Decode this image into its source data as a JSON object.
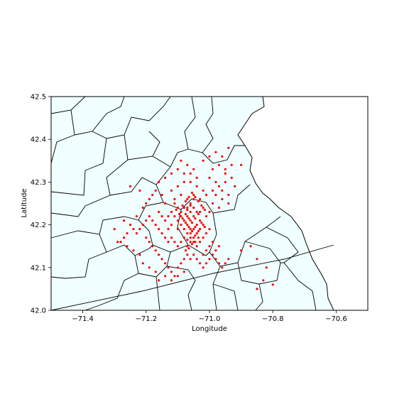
{
  "chart_data": {
    "type": "scatter",
    "title": "",
    "xlabel": "Longitude",
    "ylabel": "Latitude",
    "xlim": [
      -71.5,
      -70.5
    ],
    "ylim": [
      42.0,
      42.5
    ],
    "xticks": [
      -71.4,
      -71.2,
      -71.0,
      -70.8,
      -70.6
    ],
    "xtick_labels": [
      "−71.4",
      "−71.2",
      "−71.0",
      "−70.8",
      "−70.6"
    ],
    "yticks": [
      42.0,
      42.1,
      42.2,
      42.3,
      42.4,
      42.5
    ],
    "ytick_labels": [
      "42.0",
      "42.1",
      "42.2",
      "42.3",
      "42.4",
      "42.5"
    ],
    "grid": false,
    "colors": {
      "points": "#ff0000",
      "map_fill": "#f0ffff",
      "map_edge": "#000000",
      "axes": "#000000"
    },
    "series": [
      {
        "values_note": "",
        "points": [
          [
            -71.05,
            42.33
          ],
          [
            -71.07,
            42.34
          ],
          [
            -71.09,
            42.35
          ],
          [
            -71.06,
            42.32
          ],
          [
            -71.04,
            42.31
          ],
          [
            -71.08,
            42.3
          ],
          [
            -71.1,
            42.29
          ],
          [
            -71.12,
            42.28
          ],
          [
            -71.15,
            42.27
          ],
          [
            -71.18,
            42.27
          ],
          [
            -71.22,
            42.28
          ],
          [
            -71.25,
            42.29
          ],
          [
            -71.2,
            42.25
          ],
          [
            -71.14,
            42.25
          ],
          [
            -71.11,
            42.26
          ],
          [
            -71.09,
            42.27
          ],
          [
            -71.07,
            42.26
          ],
          [
            -71.05,
            42.27
          ],
          [
            -71.03,
            42.26
          ],
          [
            -71.01,
            42.27
          ],
          [
            -70.99,
            42.28
          ],
          [
            -70.97,
            42.29
          ],
          [
            -70.95,
            42.3
          ],
          [
            -70.93,
            42.31
          ],
          [
            -70.95,
            42.33
          ],
          [
            -70.97,
            42.34
          ],
          [
            -70.99,
            42.33
          ],
          [
            -71.0,
            42.31
          ],
          [
            -70.98,
            42.3
          ],
          [
            -70.96,
            42.28
          ],
          [
            -70.94,
            42.27
          ],
          [
            -70.96,
            42.26
          ],
          [
            -70.98,
            42.27
          ],
          [
            -70.99,
            42.25
          ],
          [
            -70.97,
            42.24
          ],
          [
            -70.96,
            42.36
          ],
          [
            -70.94,
            42.38
          ],
          [
            -70.98,
            42.37
          ],
          [
            -71.0,
            42.36
          ],
          [
            -71.02,
            42.35
          ],
          [
            -70.93,
            42.34
          ],
          [
            -70.9,
            42.34
          ],
          [
            -70.95,
            42.32
          ],
          [
            -70.92,
            42.29
          ],
          [
            -70.94,
            42.25
          ],
          [
            -71.06,
            42.25
          ],
          [
            -71.07,
            42.24
          ],
          [
            -71.08,
            42.24
          ],
          [
            -71.09,
            42.23
          ],
          [
            -71.06,
            42.23
          ],
          [
            -71.05,
            42.24
          ],
          [
            -71.04,
            42.23
          ],
          [
            -71.07,
            42.22
          ],
          [
            -71.08,
            42.21
          ],
          [
            -71.05,
            42.22
          ],
          [
            -71.06,
            42.21
          ],
          [
            -71.07,
            42.2
          ],
          [
            -71.04,
            42.2
          ],
          [
            -71.03,
            42.21
          ],
          [
            -71.05,
            42.19
          ],
          [
            -71.06,
            42.19
          ],
          [
            -71.04,
            42.18
          ],
          [
            -71.05,
            42.17
          ],
          [
            -71.06,
            42.18
          ],
          [
            -71.03,
            42.19
          ],
          [
            -71.02,
            42.2
          ],
          [
            -71.03,
            42.23
          ],
          [
            -71.02,
            42.24
          ],
          [
            -71.01,
            42.22
          ],
          [
            -71.0,
            42.23
          ],
          [
            -71.09,
            42.22
          ],
          [
            -71.1,
            42.21
          ],
          [
            -71.11,
            42.22
          ],
          [
            -71.12,
            42.23
          ],
          [
            -71.13,
            42.22
          ],
          [
            -71.14,
            42.21
          ],
          [
            -71.15,
            42.22
          ],
          [
            -71.16,
            42.23
          ],
          [
            -71.1,
            42.24
          ],
          [
            -71.11,
            42.25
          ],
          [
            -71.12,
            42.2
          ],
          [
            -71.13,
            42.19
          ],
          [
            -71.1,
            42.19
          ],
          [
            -71.09,
            42.2
          ],
          [
            -71.08,
            42.19
          ],
          [
            -71.07,
            42.18
          ],
          [
            -71.08,
            42.17
          ],
          [
            -71.06,
            42.16
          ],
          [
            -71.07,
            42.15
          ],
          [
            -71.05,
            42.16
          ],
          [
            -71.04,
            42.15
          ],
          [
            -71.03,
            42.16
          ],
          [
            -71.02,
            42.17
          ],
          [
            -71.01,
            42.18
          ],
          [
            -71.0,
            42.19
          ],
          [
            -71.09,
            42.16
          ],
          [
            -71.1,
            42.15
          ],
          [
            -71.11,
            42.16
          ],
          [
            -71.12,
            42.17
          ],
          [
            -71.13,
            42.16
          ],
          [
            -71.14,
            42.17
          ],
          [
            -71.15,
            42.18
          ],
          [
            -71.16,
            42.19
          ],
          [
            -71.17,
            42.2
          ],
          [
            -71.18,
            42.21
          ],
          [
            -71.19,
            42.22
          ],
          [
            -71.2,
            42.21
          ],
          [
            -71.21,
            42.2
          ],
          [
            -71.22,
            42.19
          ],
          [
            -71.23,
            42.18
          ],
          [
            -71.24,
            42.19
          ],
          [
            -71.25,
            42.2
          ],
          [
            -71.26,
            42.18
          ],
          [
            -71.27,
            42.17
          ],
          [
            -71.28,
            42.16
          ],
          [
            -71.2,
            42.17
          ],
          [
            -71.19,
            42.16
          ],
          [
            -71.18,
            42.15
          ],
          [
            -71.17,
            42.14
          ],
          [
            -71.16,
            42.13
          ],
          [
            -71.15,
            42.12
          ],
          [
            -71.14,
            42.11
          ],
          [
            -71.13,
            42.1
          ],
          [
            -71.12,
            42.09
          ],
          [
            -71.11,
            42.08
          ],
          [
            -71.1,
            42.1
          ],
          [
            -71.09,
            42.11
          ],
          [
            -71.08,
            42.12
          ],
          [
            -71.07,
            42.13
          ],
          [
            -71.06,
            42.12
          ],
          [
            -71.05,
            42.13
          ],
          [
            -71.04,
            42.12
          ],
          [
            -71.03,
            42.11
          ],
          [
            -71.02,
            42.1
          ],
          [
            -71.01,
            42.11
          ],
          [
            -71.0,
            42.12
          ],
          [
            -70.99,
            42.13
          ],
          [
            -70.98,
            42.12
          ],
          [
            -70.97,
            42.11
          ],
          [
            -70.96,
            42.1
          ],
          [
            -70.95,
            42.11
          ],
          [
            -70.94,
            42.12
          ],
          [
            -70.98,
            42.14
          ],
          [
            -70.97,
            42.15
          ],
          [
            -70.99,
            42.16
          ],
          [
            -71.0,
            42.15
          ],
          [
            -71.01,
            42.14
          ],
          [
            -71.02,
            42.13
          ],
          [
            -70.9,
            42.14
          ],
          [
            -70.87,
            42.15
          ],
          [
            -70.85,
            42.12
          ],
          [
            -70.82,
            42.1
          ],
          [
            -70.83,
            42.07
          ],
          [
            -70.85,
            42.05
          ],
          [
            -70.8,
            42.06
          ],
          [
            -71.21,
            42.11
          ],
          [
            -71.19,
            42.1
          ],
          [
            -71.17,
            42.09
          ],
          [
            -71.16,
            42.07
          ],
          [
            -71.14,
            42.08
          ],
          [
            -71.12,
            42.07
          ],
          [
            -71.1,
            42.08
          ],
          [
            -71.08,
            42.09
          ],
          [
            -71.22,
            42.13
          ],
          [
            -71.24,
            42.14
          ],
          [
            -71.26,
            42.15
          ],
          [
            -71.29,
            42.16
          ],
          [
            -71.3,
            42.19
          ],
          [
            -71.27,
            42.21
          ],
          [
            -71.23,
            42.22
          ],
          [
            -71.21,
            42.24
          ],
          [
            -71.19,
            42.26
          ],
          [
            -71.17,
            42.28
          ],
          [
            -71.16,
            42.3
          ],
          [
            -71.14,
            42.31
          ],
          [
            -71.12,
            42.32
          ],
          [
            -71.1,
            42.33
          ],
          [
            -71.08,
            42.32
          ],
          [
            -71.06,
            42.3
          ],
          [
            -71.04,
            42.29
          ],
          [
            -71.02,
            42.28
          ],
          [
            -71.05,
            42.26
          ],
          [
            -71.06,
            42.245
          ],
          [
            -71.07,
            42.235
          ],
          [
            -71.075,
            42.225
          ],
          [
            -71.065,
            42.215
          ],
          [
            -71.055,
            42.205
          ],
          [
            -71.045,
            42.195
          ],
          [
            -71.055,
            42.185
          ],
          [
            -71.045,
            42.175
          ],
          [
            -71.035,
            42.185
          ],
          [
            -71.065,
            42.195
          ],
          [
            -71.075,
            42.205
          ],
          [
            -71.085,
            42.215
          ],
          [
            -71.095,
            42.225
          ],
          [
            -71.105,
            42.235
          ],
          [
            -71.085,
            42.245
          ],
          [
            -71.075,
            42.255
          ],
          [
            -71.065,
            42.265
          ],
          [
            -71.055,
            42.275
          ],
          [
            -71.045,
            42.265
          ],
          [
            -71.035,
            42.255
          ],
          [
            -71.025,
            42.245
          ],
          [
            -71.015,
            42.235
          ],
          [
            -71.035,
            42.225
          ],
          [
            -71.045,
            42.215
          ],
          [
            -71.025,
            42.205
          ],
          [
            -71.015,
            42.195
          ],
          [
            -71.035,
            42.17
          ],
          [
            -71.045,
            42.16
          ],
          [
            -71.06,
            42.17
          ],
          [
            -71.07,
            42.165
          ],
          [
            -71.055,
            42.155
          ],
          [
            -71.065,
            42.145
          ],
          [
            -71.075,
            42.14
          ]
        ]
      }
    ]
  }
}
